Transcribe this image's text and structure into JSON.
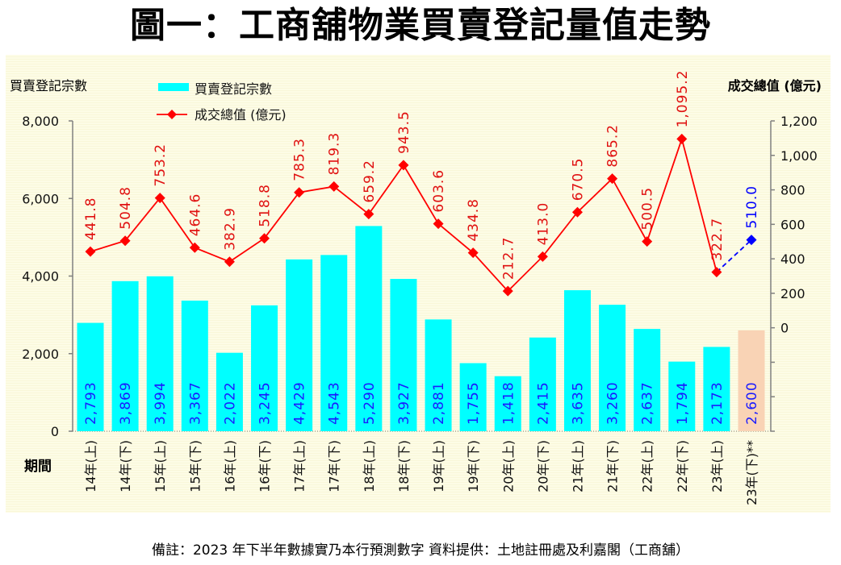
{
  "title": "圖一：工商舖物業買賣登記量值走勢",
  "footnote": "備註：2023 年下半年數據實乃本行預測數字 資料提供：土地註冊處及利嘉閣（工商舖）",
  "colors": {
    "bar": "#00ffff",
    "bar_forecast": "#f9d3b5",
    "bar_label": "#1a1aff",
    "line": "#ff0000",
    "line_text": "#e01010",
    "forecast_line": "#0000ff",
    "axis": "#808080"
  },
  "chart_data": {
    "type": "bar+line",
    "title": "圖一：工商舖物業買賣登記量值走勢",
    "xlabel": "期間",
    "categories": [
      "14年(上)",
      "14年(下)",
      "15年(上)",
      "15年(下)",
      "16年(上)",
      "16年(下)",
      "17年(上)",
      "17年(下)",
      "18年(上)",
      "18年(下)",
      "19年(上)",
      "19年(下)",
      "20年(上)",
      "20年(下)",
      "21年(上)",
      "21年(下)",
      "22年(上)",
      "22年(下)",
      "23年(上)",
      "23年(下)**"
    ],
    "left_axis": {
      "label": "買賣登記宗數",
      "ylim": [
        0,
        8000
      ],
      "ticks": [
        "0",
        "2,000",
        "4,000",
        "6,000",
        "8,000"
      ],
      "tick_values": [
        0,
        2000,
        4000,
        6000,
        8000
      ]
    },
    "right_axis": {
      "label": "成交總值 (億元)",
      "ylim": [
        -600,
        1200
      ],
      "ticks": [
        "0",
        "200",
        "400",
        "600",
        "800",
        "1,000",
        "1,200"
      ],
      "tick_values": [
        0,
        200,
        400,
        600,
        800,
        1000,
        1200
      ],
      "minor_tick_values": [
        -200,
        -400,
        -600
      ]
    },
    "legend": {
      "position": "top-left",
      "entries": [
        "買賣登記宗數",
        "成交總值 (億元)"
      ]
    },
    "series": [
      {
        "name": "買賣登記宗數",
        "type": "bar",
        "axis": "left",
        "values": [
          2793,
          3869,
          3994,
          3367,
          2022,
          3245,
          4429,
          4543,
          5290,
          3927,
          2881,
          1755,
          1418,
          2415,
          3635,
          3260,
          2637,
          1794,
          2173,
          2600
        ],
        "labels": [
          "2,793",
          "3,869",
          "3,994",
          "3,367",
          "2,022",
          "3,245",
          "4,429",
          "4,543",
          "5,290",
          "3,927",
          "2,881",
          "1,755",
          "1,418",
          "2,415",
          "3,635",
          "3,260",
          "2,637",
          "1,794",
          "2,173",
          "2,600"
        ],
        "forecast_index": 19
      },
      {
        "name": "成交總值 (億元)",
        "type": "line",
        "axis": "right",
        "values": [
          441.8,
          504.8,
          753.2,
          464.6,
          382.9,
          518.8,
          785.3,
          819.3,
          659.2,
          943.5,
          603.6,
          434.8,
          212.7,
          413.0,
          670.5,
          865.2,
          500.5,
          1095.2,
          322.7,
          510.0
        ],
        "labels": [
          "441.8",
          "504.8",
          "753.2",
          "464.6",
          "382.9",
          "518.8",
          "785.3",
          "819.3",
          "659.2",
          "943.5",
          "603.6",
          "434.8",
          "212.7",
          "413.0",
          "670.5",
          "865.2",
          "500.5",
          "1,095.2",
          "322.7",
          "510.0"
        ],
        "forecast_index": 19
      }
    ],
    "grid": false
  }
}
